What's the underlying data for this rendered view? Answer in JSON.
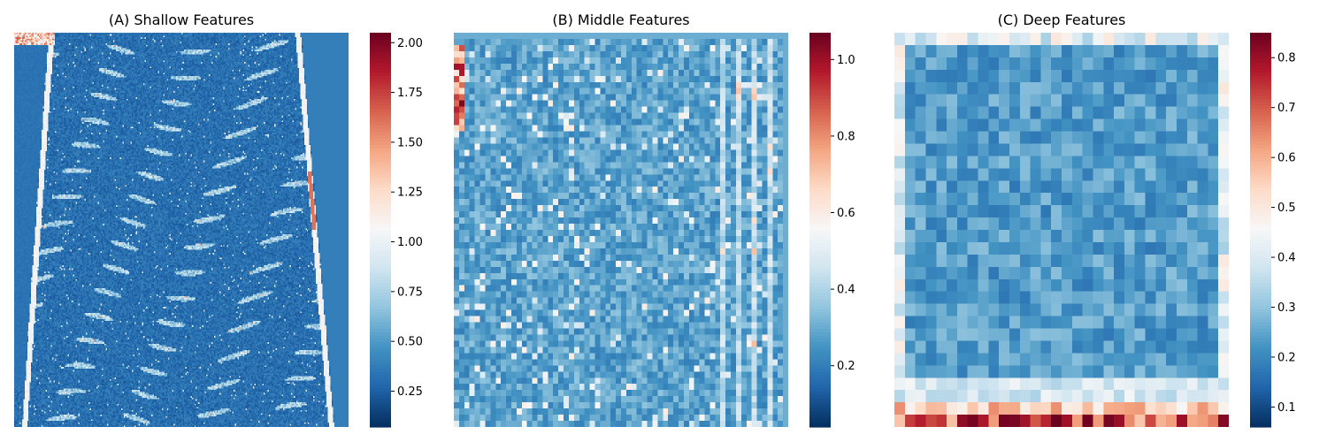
{
  "chart_data": [
    {
      "type": "heatmap",
      "title": "(A) Shallow Features",
      "colormap": "RdBu_r",
      "colorbar": {
        "range": [
          0.07,
          2.05
        ],
        "ticks": [
          0.25,
          0.5,
          0.75,
          1.0,
          1.25,
          1.5,
          1.75,
          2.0
        ],
        "tick_labels": [
          "0.25",
          "0.50",
          "0.75",
          "1.00",
          "1.25",
          "1.50",
          "1.75",
          "2.00"
        ]
      },
      "grid_resolution": [
        256,
        256
      ],
      "axes_visible": false
    },
    {
      "type": "heatmap",
      "title": "(B) Middle Features",
      "colormap": "RdBu_r",
      "colorbar": {
        "range": [
          0.04,
          1.07
        ],
        "ticks": [
          0.2,
          0.4,
          0.6,
          0.8,
          1.0
        ],
        "tick_labels": [
          "0.2",
          "0.4",
          "0.6",
          "0.8",
          "1.0"
        ]
      },
      "grid_resolution": [
        64,
        64
      ],
      "axes_visible": false
    },
    {
      "type": "heatmap",
      "title": "(C) Deep Features",
      "colormap": "RdBu_r",
      "colorbar": {
        "range": [
          0.06,
          0.85
        ],
        "ticks": [
          0.1,
          0.2,
          0.3,
          0.4,
          0.5,
          0.6,
          0.7,
          0.8
        ],
        "tick_labels": [
          "0.1",
          "0.2",
          "0.3",
          "0.4",
          "0.5",
          "0.6",
          "0.7",
          "0.8"
        ]
      },
      "grid_resolution": [
        32,
        32
      ],
      "axes_visible": false
    }
  ],
  "colors": {
    "colormap_stops": [
      "#053061",
      "#2166ac",
      "#4393c3",
      "#92c5de",
      "#d1e5f0",
      "#f7f7f7",
      "#fddbc7",
      "#f4a582",
      "#d6604d",
      "#b2182b",
      "#67001f"
    ]
  }
}
